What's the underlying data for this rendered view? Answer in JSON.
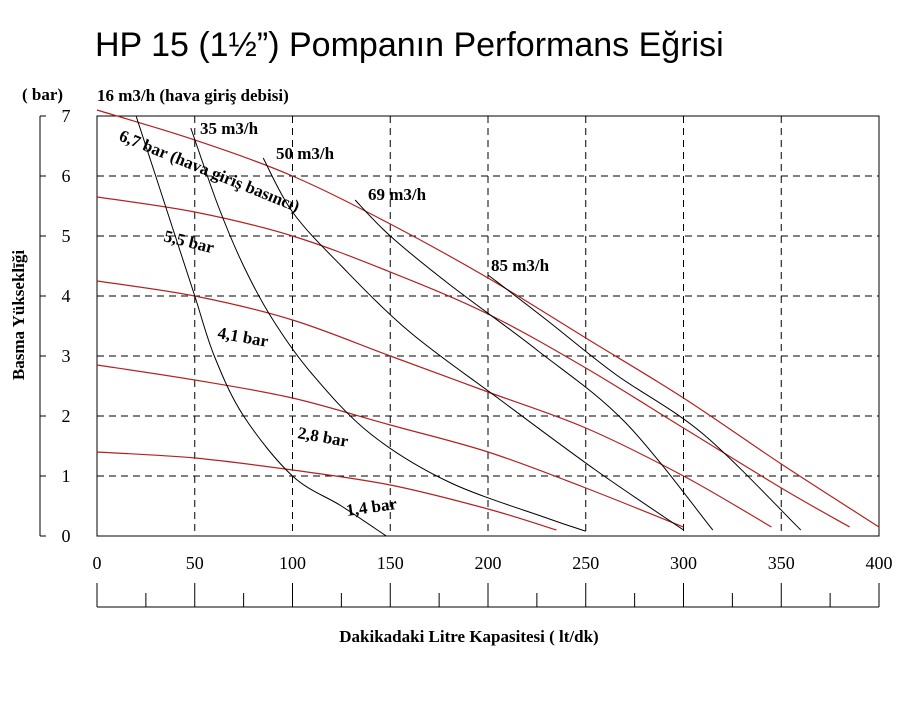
{
  "chart_data": {
    "type": "line",
    "title": "HP 15 (1½”) Pompanın Performans Eğrisi",
    "xlabel": "Dakikadaki Litre Kapasitesi ( lt/dk)",
    "ylabel": "Basma Yükseklīği",
    "y_unit": "( bar)",
    "xlim": [
      0,
      400
    ],
    "ylim": [
      0,
      7
    ],
    "x_ticks": [
      0,
      50,
      100,
      150,
      200,
      250,
      300,
      350,
      400
    ],
    "y_ticks": [
      0,
      1,
      2,
      3,
      4,
      5,
      6,
      7
    ],
    "grid": true,
    "air_inlet_pressure_curves": [
      {
        "name": "6,7 bar (hava giriş basıncı)",
        "color": "#b22222",
        "points": [
          [
            0,
            7.1
          ],
          [
            50,
            6.6
          ],
          [
            100,
            6.0
          ],
          [
            150,
            5.2
          ],
          [
            200,
            4.3
          ],
          [
            250,
            3.3
          ],
          [
            300,
            2.3
          ],
          [
            350,
            1.2
          ],
          [
            400,
            0.15
          ]
        ]
      },
      {
        "name": "5,5 bar",
        "color": "#b22222",
        "points": [
          [
            0,
            5.65
          ],
          [
            50,
            5.4
          ],
          [
            100,
            5.0
          ],
          [
            150,
            4.4
          ],
          [
            200,
            3.7
          ],
          [
            250,
            2.8
          ],
          [
            300,
            1.8
          ],
          [
            350,
            0.8
          ],
          [
            385,
            0.15
          ]
        ]
      },
      {
        "name": "4,1 bar",
        "color": "#b22222",
        "points": [
          [
            0,
            4.25
          ],
          [
            50,
            4.0
          ],
          [
            100,
            3.6
          ],
          [
            150,
            3.0
          ],
          [
            200,
            2.4
          ],
          [
            250,
            1.8
          ],
          [
            300,
            1.0
          ],
          [
            345,
            0.15
          ]
        ]
      },
      {
        "name": "2,8 bar",
        "color": "#b22222",
        "points": [
          [
            0,
            2.85
          ],
          [
            50,
            2.6
          ],
          [
            100,
            2.3
          ],
          [
            150,
            1.85
          ],
          [
            200,
            1.4
          ],
          [
            250,
            0.8
          ],
          [
            300,
            0.15
          ]
        ]
      },
      {
        "name": "1,4 bar",
        "color": "#b22222",
        "points": [
          [
            0,
            1.4
          ],
          [
            50,
            1.3
          ],
          [
            100,
            1.1
          ],
          [
            150,
            0.85
          ],
          [
            200,
            0.45
          ],
          [
            235,
            0.1
          ]
        ]
      }
    ],
    "air_consumption_curves": [
      {
        "name": "16 m3/h (hava giriş debisi)",
        "color": "#000000",
        "points": [
          [
            20,
            7.0
          ],
          [
            30,
            6.0
          ],
          [
            40,
            5.0
          ],
          [
            50,
            4.0
          ],
          [
            60,
            3.0
          ],
          [
            75,
            2.0
          ],
          [
            100,
            1.0
          ],
          [
            125,
            0.5
          ],
          [
            148,
            0
          ]
        ]
      },
      {
        "name": "35 m3/h",
        "color": "#000000",
        "points": [
          [
            48,
            6.8
          ],
          [
            62,
            5.5
          ],
          [
            75,
            4.5
          ],
          [
            90,
            3.6
          ],
          [
            110,
            2.7
          ],
          [
            140,
            1.7
          ],
          [
            180,
            0.9
          ],
          [
            230,
            0.3
          ],
          [
            250,
            0.08
          ]
        ]
      },
      {
        "name": "50 m3/h",
        "color": "#000000",
        "points": [
          [
            85,
            6.3
          ],
          [
            100,
            5.4
          ],
          [
            125,
            4.5
          ],
          [
            160,
            3.4
          ],
          [
            205,
            2.3
          ],
          [
            255,
            1.1
          ],
          [
            300,
            0.1
          ]
        ]
      },
      {
        "name": "69 m3/h",
        "color": "#000000",
        "points": [
          [
            132,
            5.6
          ],
          [
            150,
            5.0
          ],
          [
            180,
            4.2
          ],
          [
            225,
            3.1
          ],
          [
            270,
            1.9
          ],
          [
            315,
            0.1
          ]
        ]
      },
      {
        "name": "85 m3/h",
        "color": "#000000",
        "points": [
          [
            200,
            4.35
          ],
          [
            230,
            3.6
          ],
          [
            265,
            2.7
          ],
          [
            310,
            1.7
          ],
          [
            360,
            0.1
          ]
        ]
      }
    ]
  },
  "labels": {
    "l16": "16 m3/h (hava giriş debisi)",
    "l35": "35 m3/h",
    "l50": "50 m3/h",
    "l69": "69 m3/h",
    "l85": "85 m3/h",
    "l67": "6,7 bar (hava giriş basıncı)",
    "l55": "5,5 bar",
    "l41": "4,1 bar",
    "l28": "2,8 bar",
    "l14": "1,4 bar"
  }
}
